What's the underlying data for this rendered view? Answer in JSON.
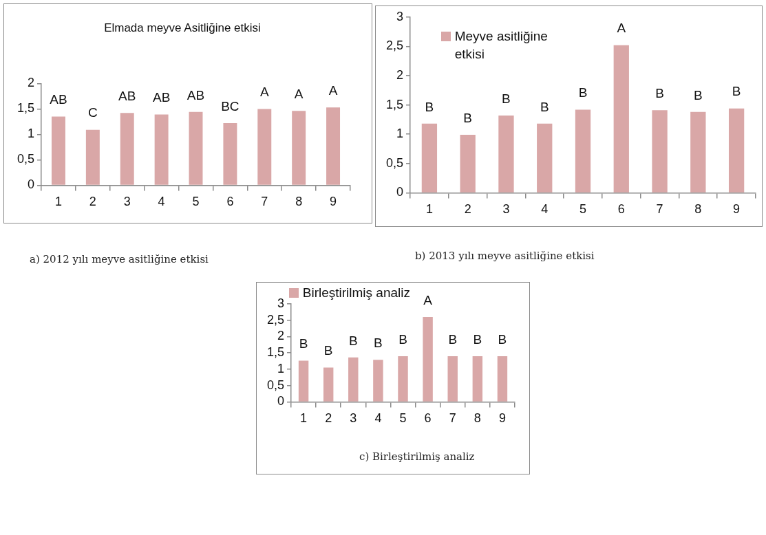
{
  "chart_data": [
    {
      "type": "bar",
      "title": "Elmada meyve Asitliğine etkisi",
      "categories": [
        "1",
        "2",
        "3",
        "4",
        "5",
        "6",
        "7",
        "8",
        "9"
      ],
      "series": [
        {
          "color": "#d9a7a7",
          "values": [
            1.35,
            1.09,
            1.42,
            1.39,
            1.44,
            1.22,
            1.5,
            1.46,
            1.53
          ]
        }
      ],
      "ylim": [
        0,
        2
      ],
      "yticks": [
        0,
        {
          "value": 0.5,
          "label": "0,5"
        },
        1,
        {
          "value": 1.5,
          "label": "1,5"
        },
        2
      ],
      "grid": false,
      "annotations": [
        {
          "text": "AB",
          "x": "1",
          "y": 1.35
        },
        {
          "text": "C",
          "x": "2",
          "y": 1.09
        },
        {
          "text": "AB",
          "x": "3",
          "y": 1.42
        },
        {
          "text": "AB",
          "x": "4",
          "y": 1.39
        },
        {
          "text": "AB",
          "x": "5",
          "y": 1.44
        },
        {
          "text": "BC",
          "x": "6",
          "y": 1.22
        },
        {
          "text": "A",
          "x": "7",
          "y": 1.5
        },
        {
          "text": "A",
          "x": "8",
          "y": 1.46
        },
        {
          "text": "A",
          "x": "9",
          "y": 1.53
        },
        "a) 2012 yılı meyve asitliğine etkisi"
      ]
    },
    {
      "type": "bar",
      "categories": [
        "1",
        "2",
        "3",
        "4",
        "5",
        "6",
        "7",
        "8",
        "9"
      ],
      "series": [
        {
          "name": "Meyve asitliğine etkisi",
          "color": "#d9a7a7",
          "values": [
            1.18,
            0.99,
            1.32,
            1.18,
            1.42,
            2.52,
            1.41,
            1.38,
            1.44
          ]
        }
      ],
      "ylim": [
        0,
        3
      ],
      "yticks": [
        0,
        {
          "value": 0.5,
          "label": "0,5"
        },
        1,
        {
          "value": 1.5,
          "label": "1,5"
        },
        2,
        {
          "value": 2.5,
          "label": "2,5"
        },
        3
      ],
      "grid": false,
      "legend": "top left",
      "annotations": [
        {
          "text": "B",
          "x": "1",
          "y": 1.18
        },
        {
          "text": "B",
          "x": "2",
          "y": 0.99
        },
        {
          "text": "B",
          "x": "3",
          "y": 1.32
        },
        {
          "text": "B",
          "x": "4",
          "y": 1.18
        },
        {
          "text": "B",
          "x": "5",
          "y": 1.42
        },
        {
          "text": "A",
          "x": "6",
          "y": 2.52
        },
        {
          "text": "B",
          "x": "7",
          "y": 1.41
        },
        {
          "text": "B",
          "x": "8",
          "y": 1.38
        },
        {
          "text": "B",
          "x": "9",
          "y": 1.44
        },
        "b) 2013 yılı meyve asitliğine etkisi"
      ]
    },
    {
      "type": "bar",
      "categories": [
        "1",
        "2",
        "3",
        "4",
        "5",
        "6",
        "7",
        "8",
        "9"
      ],
      "series": [
        {
          "name": "Birleştirilmiş analiz",
          "color": "#d9a7a7",
          "values": [
            1.26,
            1.05,
            1.36,
            1.29,
            1.4,
            2.6,
            1.4,
            1.4,
            1.4
          ]
        }
      ],
      "ylim": [
        0,
        3
      ],
      "yticks": [
        0,
        {
          "value": 0.5,
          "label": "0,5"
        },
        1,
        {
          "value": 1.5,
          "label": "1,5"
        },
        2,
        {
          "value": 2.5,
          "label": "2,5"
        },
        3
      ],
      "grid": false,
      "legend": "top",
      "annotations": [
        {
          "text": "B",
          "x": "1",
          "y": 1.26
        },
        {
          "text": "B",
          "x": "2",
          "y": 1.05
        },
        {
          "text": "B",
          "x": "3",
          "y": 1.36
        },
        {
          "text": "B",
          "x": "4",
          "y": 1.29
        },
        {
          "text": "B",
          "x": "5",
          "y": 1.4
        },
        {
          "text": "A",
          "x": "6",
          "y": 2.6
        },
        {
          "text": "B",
          "x": "7",
          "y": 1.4
        },
        {
          "text": "B",
          "x": "8",
          "y": 1.4
        },
        {
          "text": "B",
          "x": "9",
          "y": 1.4
        },
        "c) Birleştirilmiş analiz"
      ]
    }
  ]
}
